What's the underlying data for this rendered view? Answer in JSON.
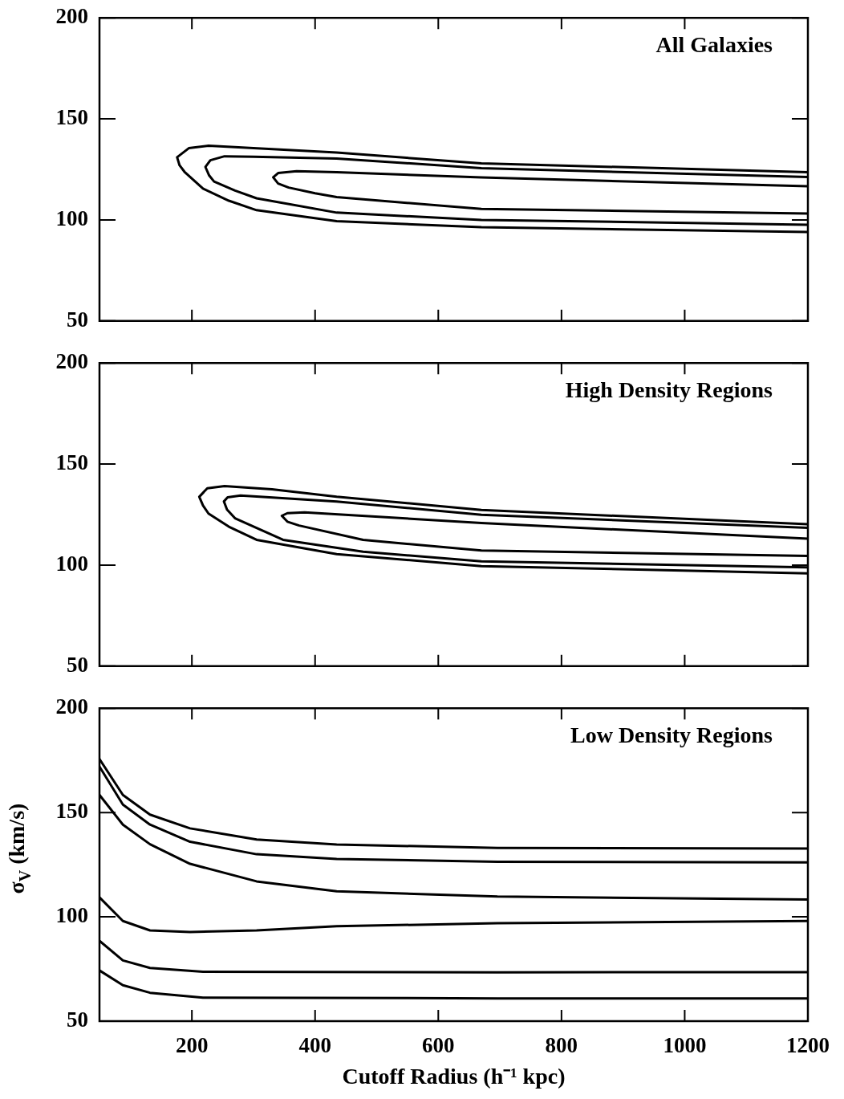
{
  "chart_data": [
    {
      "type": "line",
      "title": "All Galaxies",
      "xlim": [
        50,
        1200
      ],
      "ylim": [
        50,
        200
      ],
      "xticks": [
        200,
        400,
        600,
        800,
        1000,
        1200
      ],
      "yticks": [
        50,
        100,
        150,
        200
      ],
      "tick_labels": "y",
      "marker": "none",
      "series": [
        {
          "color": "#000000",
          "x": [
            1200,
            670,
            435,
            300,
            227,
            195,
            176,
            180,
            188,
            218,
            260,
            305,
            435,
            670,
            1200
          ],
          "values": [
            123.6,
            128,
            133.3,
            135.5,
            136.7,
            135.5,
            131,
            127,
            123.8,
            115.5,
            109.5,
            104.8,
            99.4,
            96.4,
            94
          ]
        },
        {
          "color": "#000000",
          "x": [
            1200,
            670,
            435,
            300,
            253,
            230,
            222,
            228,
            236,
            270,
            305,
            435,
            670,
            1200
          ],
          "values": [
            121.2,
            125.6,
            130.4,
            131.3,
            131.5,
            129.5,
            126.2,
            122,
            119,
            114.5,
            110.7,
            103.6,
            100,
            97.6
          ]
        },
        {
          "color": "#000000",
          "x": [
            1200,
            670,
            435,
            370,
            340,
            332,
            340,
            357,
            400,
            435,
            670,
            1200
          ],
          "values": [
            116.7,
            121,
            123.6,
            124.1,
            123.2,
            121.1,
            118,
            116,
            113.2,
            111.3,
            105.4,
            103.2
          ]
        }
      ]
    },
    {
      "type": "line",
      "title": "High Density Regions",
      "xlim": [
        50,
        1200
      ],
      "ylim": [
        50,
        200
      ],
      "xticks": [
        200,
        400,
        600,
        800,
        1000,
        1200
      ],
      "yticks": [
        50,
        100,
        150,
        200
      ],
      "tick_labels": "y",
      "marker": "none",
      "series": [
        {
          "color": "#000000",
          "x": [
            1200,
            670,
            435,
            330,
            253,
            225,
            212,
            218,
            227,
            260,
            305,
            435,
            670,
            1200
          ],
          "values": [
            120.2,
            127.3,
            133.8,
            137.5,
            139.1,
            138,
            133.8,
            129.5,
            125.5,
            119,
            112.5,
            105.4,
            99.5,
            95.9
          ]
        },
        {
          "color": "#000000",
          "x": [
            1200,
            670,
            435,
            279,
            258,
            252,
            257,
            270,
            348,
            478,
            670,
            1200
          ],
          "values": [
            118.4,
            124.9,
            131.5,
            134.4,
            133.5,
            131.5,
            127.5,
            123.2,
            112.5,
            106.6,
            101.9,
            98.9
          ]
        },
        {
          "color": "#000000",
          "x": [
            1200,
            670,
            383,
            355,
            346,
            355,
            374,
            478,
            670,
            1200
          ],
          "values": [
            113.1,
            120.8,
            126.1,
            125.7,
            124.4,
            121.5,
            119.6,
            112.5,
            107.2,
            104.5
          ]
        }
      ]
    },
    {
      "type": "line",
      "title": "Low Density Regions",
      "xlabel": "Cutoff Radius (h⁻¹ kpc)",
      "ylabel": "σ$_{V}$ (km/s)",
      "xlim": [
        50,
        1200
      ],
      "ylim": [
        50,
        200
      ],
      "xticks": [
        200,
        400,
        600,
        800,
        1000,
        1200
      ],
      "yticks": [
        50,
        100,
        150,
        200
      ],
      "marker": "none",
      "series": [
        {
          "color": "#000000",
          "x": [
            50,
            88,
            132,
            197,
            305,
            435,
            696,
            1200
          ],
          "values": [
            175.6,
            158.4,
            149,
            142.4,
            137.1,
            134.7,
            133,
            132.7
          ]
        },
        {
          "color": "#000000",
          "x": [
            50,
            88,
            132,
            197,
            305,
            435,
            696,
            1200
          ],
          "values": [
            172,
            153.8,
            144.2,
            136,
            130,
            127.7,
            126.4,
            126.1
          ]
        },
        {
          "color": "#000000",
          "x": [
            50,
            88,
            132,
            197,
            305,
            435,
            696,
            1200
          ],
          "values": [
            158.4,
            144.2,
            134.8,
            125.4,
            117,
            112.2,
            109.7,
            108.3
          ]
        },
        {
          "color": "#000000",
          "x": [
            50,
            88,
            132,
            197,
            305,
            435,
            696,
            1200
          ],
          "values": [
            109.3,
            98,
            93.5,
            92.7,
            93.5,
            95.5,
            96.9,
            98
          ]
        },
        {
          "color": "#000000",
          "x": [
            50,
            88,
            132,
            218,
            696,
            1200
          ],
          "values": [
            88.5,
            79.1,
            75.5,
            73.7,
            73.4,
            73.5
          ]
        },
        {
          "color": "#000000",
          "x": [
            50,
            88,
            132,
            218,
            696,
            1200
          ],
          "values": [
            74.3,
            67.2,
            63.6,
            61.3,
            60.9,
            60.9
          ]
        }
      ]
    }
  ]
}
